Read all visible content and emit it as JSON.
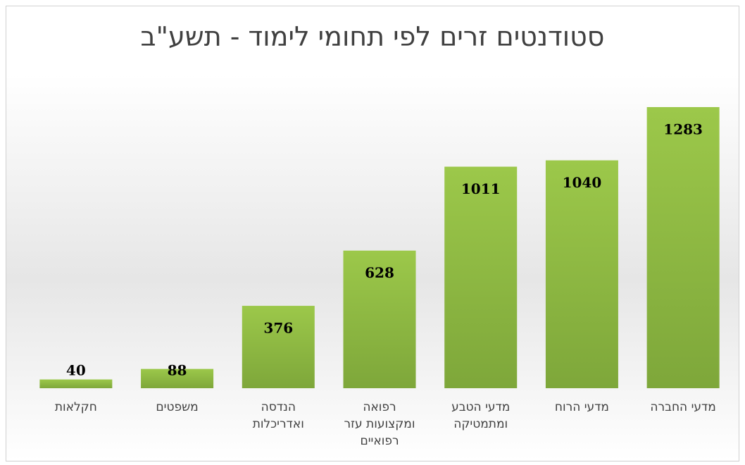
{
  "chart_data": {
    "type": "bar",
    "title": "סטודנטים זרים לפי תחומי לימוד - תשע\"ב",
    "categories": [
      "חקלאות",
      "משפטים",
      "הנדסה ואדריכלות",
      "רפואה ומקצועות עזר רפואיים",
      "מדעי הטבע ומתמטיקה",
      "מדעי הרוח",
      "מדעי החברה"
    ],
    "values": [
      40,
      88,
      376,
      628,
      1011,
      1040,
      1283
    ],
    "color": "#8db843"
  }
}
